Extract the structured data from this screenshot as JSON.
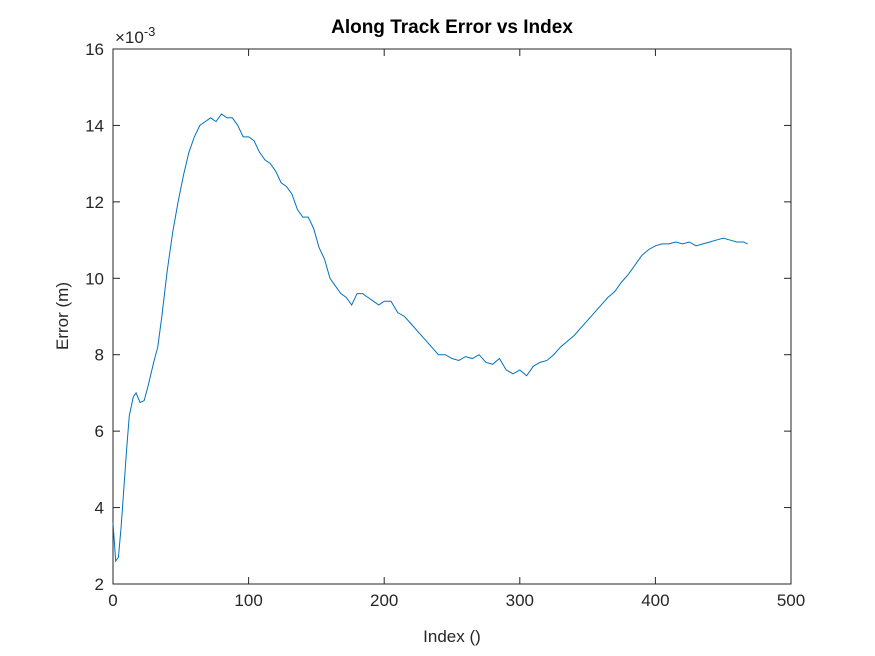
{
  "chart_data": {
    "type": "line",
    "title": "Along Track Error vs Index",
    "xlabel": "Index ()",
    "ylabel": "Error (m)",
    "y_exponent_base": "×10",
    "y_exponent": "-3",
    "xlim": [
      0,
      500
    ],
    "xticks": [
      0,
      100,
      200,
      300,
      400,
      500
    ],
    "ylim": [
      2,
      16
    ],
    "yticks": [
      2,
      4,
      6,
      8,
      10,
      12,
      14,
      16
    ],
    "grid": false,
    "x": [
      0,
      2,
      4,
      6,
      8,
      10,
      12,
      15,
      17,
      20,
      23,
      26,
      30,
      33,
      36,
      40,
      44,
      48,
      52,
      56,
      60,
      64,
      68,
      72,
      76,
      80,
      84,
      88,
      92,
      96,
      100,
      104,
      108,
      112,
      116,
      120,
      124,
      128,
      132,
      136,
      140,
      144,
      148,
      152,
      156,
      160,
      164,
      168,
      172,
      176,
      180,
      184,
      188,
      192,
      196,
      200,
      205,
      210,
      215,
      220,
      225,
      230,
      235,
      240,
      245,
      250,
      255,
      260,
      265,
      270,
      275,
      280,
      285,
      290,
      295,
      300,
      305,
      310,
      315,
      320,
      325,
      330,
      335,
      340,
      345,
      350,
      355,
      360,
      365,
      370,
      375,
      380,
      385,
      390,
      395,
      400,
      405,
      410,
      415,
      420,
      425,
      430,
      435,
      440,
      445,
      450,
      455,
      460,
      465,
      468
    ],
    "series": [
      {
        "name": "Along track error",
        "color": "#0072bd",
        "values": [
          3.6,
          2.6,
          2.7,
          3.5,
          4.5,
          5.5,
          6.4,
          6.9,
          7.0,
          6.75,
          6.8,
          7.2,
          7.8,
          8.2,
          9.0,
          10.2,
          11.2,
          12.0,
          12.7,
          13.3,
          13.7,
          14.0,
          14.1,
          14.2,
          14.1,
          14.3,
          14.2,
          14.2,
          14.0,
          13.7,
          13.7,
          13.6,
          13.3,
          13.1,
          13.0,
          12.8,
          12.5,
          12.4,
          12.2,
          11.8,
          11.6,
          11.6,
          11.3,
          10.8,
          10.5,
          10.0,
          9.8,
          9.6,
          9.5,
          9.3,
          9.6,
          9.6,
          9.5,
          9.4,
          9.3,
          9.4,
          9.4,
          9.1,
          9.0,
          8.8,
          8.6,
          8.4,
          8.2,
          8.0,
          8.0,
          7.9,
          7.85,
          7.95,
          7.9,
          8.0,
          7.8,
          7.75,
          7.9,
          7.6,
          7.5,
          7.6,
          7.45,
          7.7,
          7.8,
          7.85,
          8.0,
          8.2,
          8.35,
          8.5,
          8.7,
          8.9,
          9.1,
          9.3,
          9.5,
          9.65,
          9.9,
          10.1,
          10.35,
          10.6,
          10.75,
          10.85,
          10.9,
          10.9,
          10.95,
          10.9,
          10.95,
          10.85,
          10.9,
          10.95,
          11.0,
          11.05,
          11.0,
          10.95,
          10.95,
          10.9
        ]
      }
    ]
  }
}
